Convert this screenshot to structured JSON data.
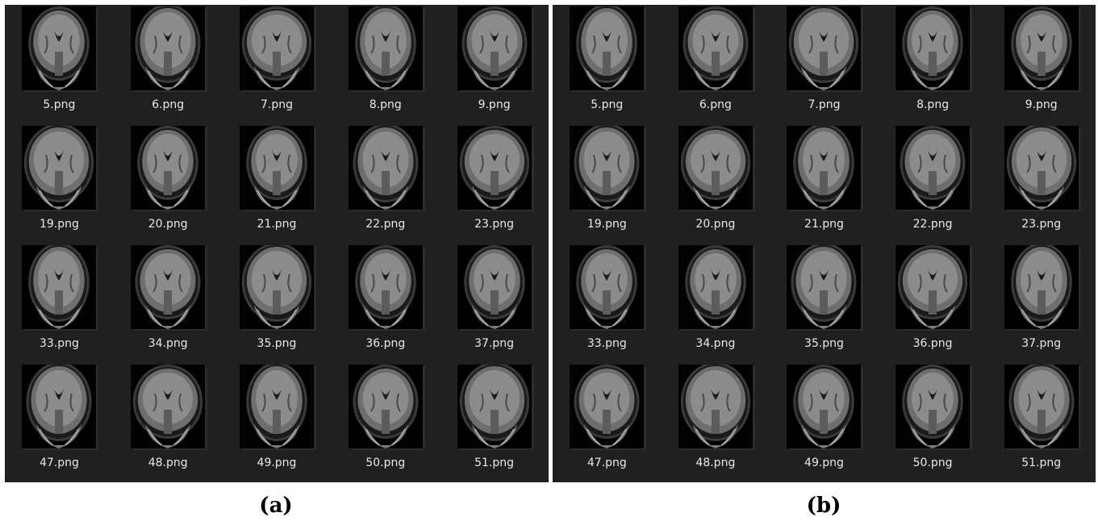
{
  "panels": [
    {
      "caption": "(a)",
      "thumbnails": [
        "5.png",
        "6.png",
        "7.png",
        "8.png",
        "9.png",
        "19.png",
        "20.png",
        "21.png",
        "22.png",
        "23.png",
        "33.png",
        "34.png",
        "35.png",
        "36.png",
        "37.png",
        "47.png",
        "48.png",
        "49.png",
        "50.png",
        "51.png"
      ]
    },
    {
      "caption": "(b)",
      "thumbnails": [
        "5.png",
        "6.png",
        "7.png",
        "8.png",
        "9.png",
        "19.png",
        "20.png",
        "21.png",
        "22.png",
        "23.png",
        "33.png",
        "34.png",
        "35.png",
        "36.png",
        "37.png",
        "47.png",
        "48.png",
        "49.png",
        "50.png",
        "51.png"
      ]
    }
  ],
  "colors": {
    "panel_background": "#202020",
    "filename_text": "#e8e8e8",
    "thumbnail_background": "#000000"
  },
  "thumbnail_content": "brain-mri-coronal-slice"
}
